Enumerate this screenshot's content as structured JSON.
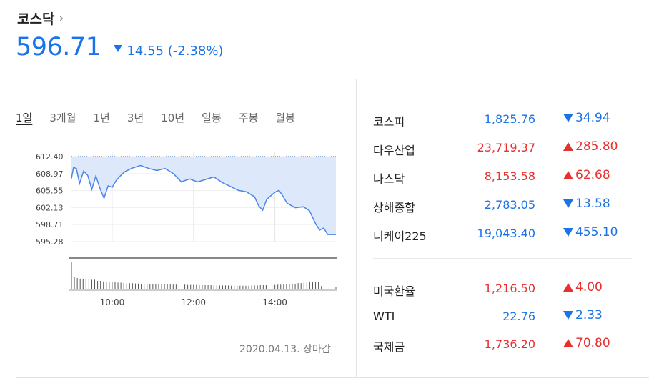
{
  "header": {
    "title": "코스닥",
    "chevron": "›",
    "price": "596.71",
    "change": "14.55 (-2.38%)",
    "direction": "down"
  },
  "periods": [
    "1일",
    "3개월",
    "1년",
    "3년",
    "10년",
    "일봉",
    "주봉",
    "월봉"
  ],
  "active_period": "1일",
  "chart_data": {
    "type": "area",
    "y_ticks": [
      "612.40",
      "608.97",
      "605.55",
      "602.13",
      "598.71",
      "595.28"
    ],
    "x_ticks": [
      "10:00",
      "12:00",
      "14:00"
    ],
    "ylim": [
      595.28,
      612.4
    ],
    "reference_line": 612.4,
    "x_range_hours": [
      9.0,
      15.5
    ],
    "series": [
      {
        "x": [
          9.0,
          9.05,
          9.12,
          9.2,
          9.3,
          9.4,
          9.5,
          9.6,
          9.7,
          9.8,
          9.9,
          10.0,
          10.1,
          10.2,
          10.3,
          10.5,
          10.7,
          10.9,
          11.1,
          11.3,
          11.5,
          11.7,
          11.9,
          12.1,
          12.3,
          12.5,
          12.7,
          12.9,
          13.1,
          13.3,
          13.5,
          13.6,
          13.7,
          13.8,
          13.9,
          14.0,
          14.1,
          14.2,
          14.3,
          14.5,
          14.7,
          14.85,
          15.0,
          15.1,
          15.2,
          15.3,
          15.5
        ],
        "y": [
          608.0,
          610.2,
          610.0,
          607.0,
          609.5,
          608.6,
          605.8,
          608.5,
          606.0,
          604.0,
          606.5,
          606.2,
          607.6,
          608.5,
          609.3,
          610.1,
          610.6,
          610.0,
          609.6,
          610.0,
          609.0,
          607.3,
          607.9,
          607.3,
          607.8,
          608.3,
          607.2,
          606.4,
          605.6,
          605.3,
          604.3,
          602.5,
          601.6,
          603.8,
          604.5,
          605.2,
          605.6,
          604.4,
          603.0,
          602.1,
          602.3,
          601.5,
          598.9,
          597.6,
          598.0,
          596.7,
          596.7
        ]
      }
    ],
    "volume": [
      0.95,
      0.45,
      0.4,
      0.38,
      0.37,
      0.36,
      0.35,
      0.34,
      0.34,
      0.3,
      0.3,
      0.28,
      0.27,
      0.26,
      0.25,
      0.25,
      0.24,
      0.24,
      0.23,
      0.22,
      0.22,
      0.22,
      0.21,
      0.21,
      0.2,
      0.2,
      0.2,
      0.2,
      0.19,
      0.19,
      0.19,
      0.18,
      0.18,
      0.18,
      0.18,
      0.17,
      0.17,
      0.17,
      0.17,
      0.17,
      0.16,
      0.16,
      0.16,
      0.16,
      0.15,
      0.15,
      0.15,
      0.15,
      0.15,
      0.14,
      0.14,
      0.14,
      0.14,
      0.14,
      0.14,
      0.13,
      0.13,
      0.13,
      0.13,
      0.13,
      0.13,
      0.13,
      0.14,
      0.14,
      0.14,
      0.15,
      0.15,
      0.15,
      0.16,
      0.16,
      0.16,
      0.17,
      0.17,
      0.17,
      0.18,
      0.18,
      0.2,
      0.2,
      0.22,
      0.22,
      0.23,
      0.24,
      0.25,
      0.25,
      0.26,
      0.27,
      0.12,
      0.0,
      0.0,
      0.0,
      0.0,
      0.08
    ]
  },
  "chart_date": "2020.04.13. 장마감",
  "markets": [
    {
      "name": "코스피",
      "value": "1,825.76",
      "change": "34.94",
      "dir": "down"
    },
    {
      "name": "다우산업",
      "value": "23,719.37",
      "change": "285.80",
      "dir": "up"
    },
    {
      "name": "나스닥",
      "value": "8,153.58",
      "change": "62.68",
      "dir": "up"
    },
    {
      "name": "상해종합",
      "value": "2,783.05",
      "change": "13.58",
      "dir": "down"
    },
    {
      "name": "니케이225",
      "value": "19,043.40",
      "change": "455.10",
      "dir": "down"
    }
  ],
  "others": [
    {
      "name": "미국환율",
      "value": "1,216.50",
      "change": "4.00",
      "dir": "up"
    },
    {
      "name": "WTI",
      "value": "22.76",
      "change": "2.33",
      "dir": "down"
    },
    {
      "name": "국제금",
      "value": "1,736.20",
      "change": "70.80",
      "dir": "up"
    }
  ],
  "colors": {
    "down": "#1a73e8",
    "up": "#e8302f",
    "area_fill": "#dde8fb",
    "line": "#4a86e8"
  }
}
